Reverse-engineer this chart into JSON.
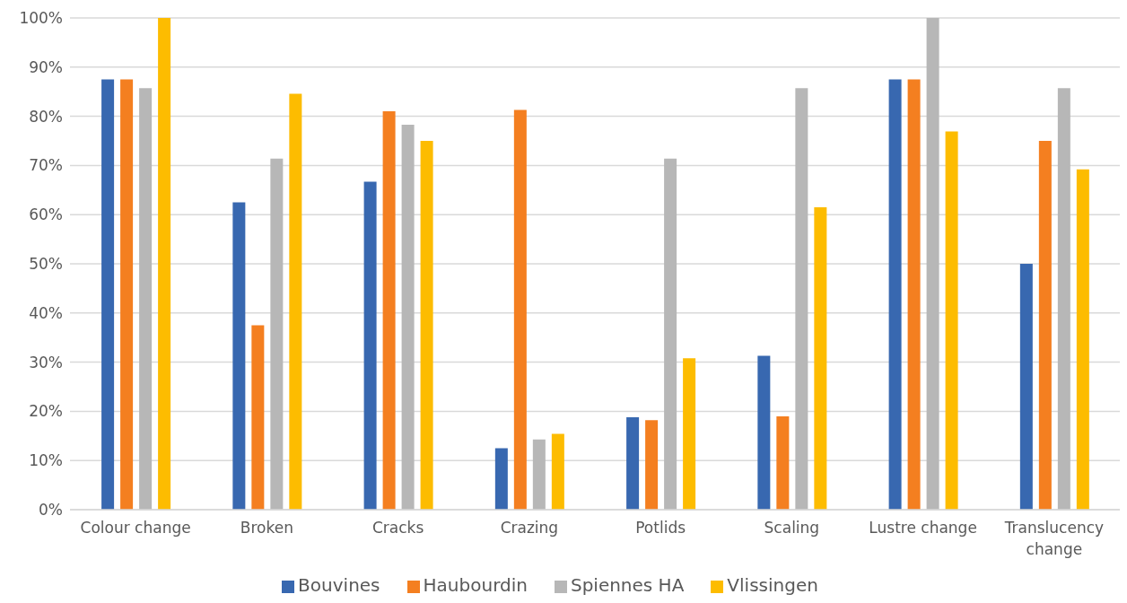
{
  "chart_data": {
    "type": "bar",
    "categories": [
      "Colour change",
      "Broken",
      "Cracks",
      "Crazing",
      "Potlids",
      "Scaling",
      "Lustre change",
      "Translucency change"
    ],
    "series": [
      {
        "name": "Bouvines",
        "color": "#3868b0",
        "values": [
          87.5,
          62.5,
          66.7,
          12.5,
          18.8,
          31.3,
          87.5,
          50
        ]
      },
      {
        "name": "Haubourdin",
        "color": "#f47f20",
        "values": [
          87.5,
          37.5,
          81,
          81.3,
          18.2,
          19,
          87.5,
          75
        ]
      },
      {
        "name": "Spiennes HA",
        "color": "#b7b7b7",
        "values": [
          85.7,
          71.4,
          78.3,
          14.3,
          71.4,
          85.7,
          100,
          85.7
        ]
      },
      {
        "name": "Vlissingen",
        "color": "#fdbc00",
        "values": [
          100,
          84.6,
          75,
          15.4,
          30.8,
          61.5,
          76.9,
          69.2
        ]
      }
    ],
    "ylim": [
      0,
      100
    ],
    "yticks": [
      {
        "value": 0,
        "label": "0%"
      },
      {
        "value": 10,
        "label": "10%"
      },
      {
        "value": 20,
        "label": "20%"
      },
      {
        "value": 30,
        "label": "30%"
      },
      {
        "value": 40,
        "label": "40%"
      },
      {
        "value": 50,
        "label": "50%"
      },
      {
        "value": 60,
        "label": "60%"
      },
      {
        "value": 70,
        "label": "70%"
      },
      {
        "value": 80,
        "label": "80%"
      },
      {
        "value": 90,
        "label": "90%"
      },
      {
        "value": 100,
        "label": "100%"
      }
    ],
    "grid": "y",
    "legend": "bottom"
  }
}
